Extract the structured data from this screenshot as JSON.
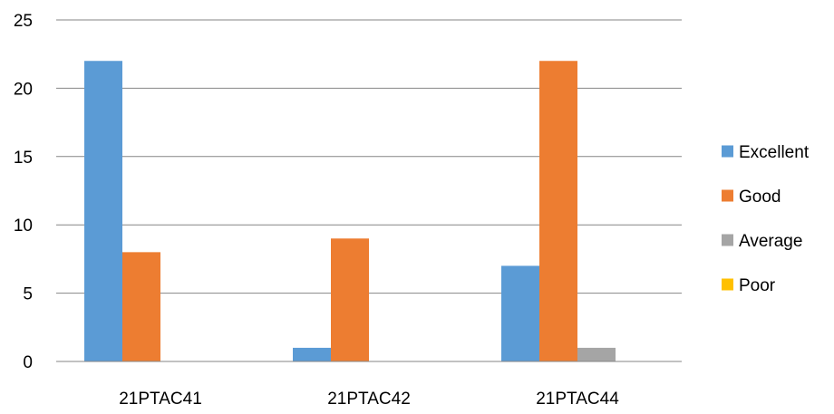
{
  "chart_data": {
    "type": "bar",
    "title": "",
    "xlabel": "",
    "ylabel": "",
    "categories": [
      "21PTAC41",
      "21PTAC42",
      "21PTAC44"
    ],
    "series": [
      {
        "name": "Excellent",
        "values": [
          22,
          1,
          7
        ],
        "color": "#5B9BD5"
      },
      {
        "name": "Good",
        "values": [
          8,
          9,
          22
        ],
        "color": "#ED7D31"
      },
      {
        "name": "Average",
        "values": [
          0,
          0,
          1
        ],
        "color": "#A5A5A5"
      },
      {
        "name": "Poor",
        "values": [
          0,
          0,
          0
        ],
        "color": "#FFC000"
      }
    ],
    "ylim": [
      0,
      25
    ],
    "yticks": [
      0,
      5,
      10,
      15,
      20,
      25
    ],
    "grid": true,
    "legend_position": "right"
  }
}
